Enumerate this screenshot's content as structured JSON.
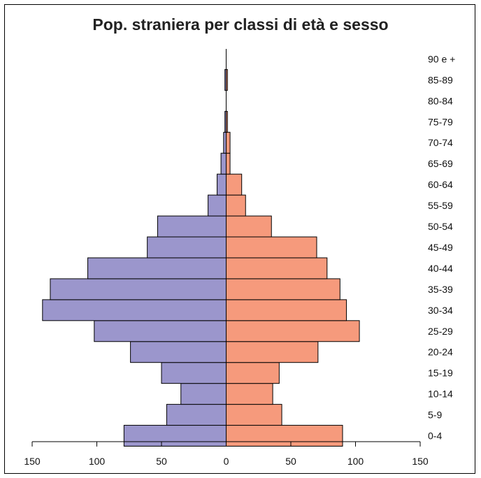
{
  "chart_data": {
    "type": "bar",
    "title": "Pop. straniera per classi di età e sesso",
    "categories": [
      "0-4",
      "5-9",
      "10-14",
      "15-19",
      "20-24",
      "25-29",
      "30-34",
      "35-39",
      "40-44",
      "45-49",
      "50-54",
      "55-59",
      "60-64",
      "65-69",
      "70-74",
      "75-79",
      "80-84",
      "85-89",
      "90 e +"
    ],
    "series": [
      {
        "values": [
          79,
          46,
          35,
          50,
          74,
          102,
          142,
          136,
          107,
          61,
          53,
          14,
          7,
          4,
          2,
          1,
          0,
          1,
          0
        ],
        "color": "#9b96cc"
      },
      {
        "values": [
          90,
          43,
          36,
          41,
          71,
          103,
          93,
          88,
          78,
          70,
          35,
          15,
          12,
          3,
          3,
          1,
          0,
          1,
          0
        ],
        "color": "#f69a7c"
      }
    ],
    "xlim": [
      -150,
      150
    ],
    "xticks": [
      150,
      100,
      50,
      0,
      50,
      100,
      150
    ],
    "orientation": "horizontal-pyramid"
  }
}
